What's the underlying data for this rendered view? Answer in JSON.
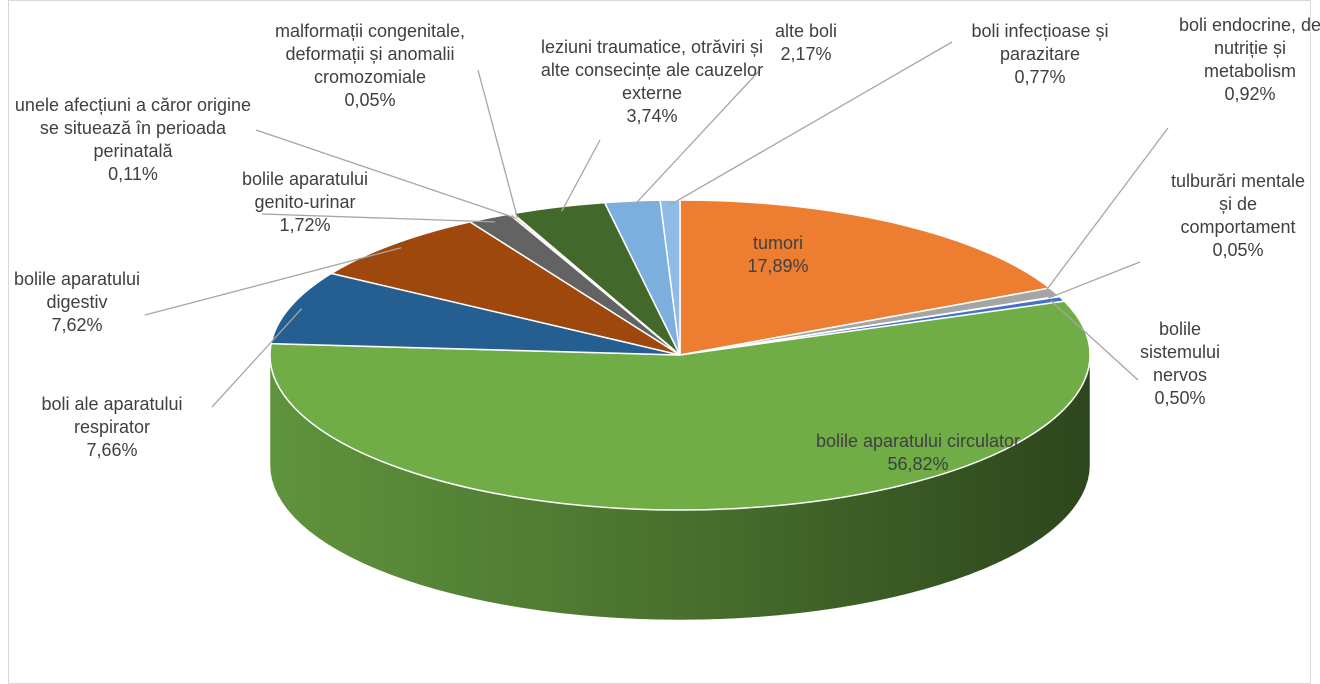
{
  "chart_data": {
    "type": "pie",
    "categories": [
      "tumori",
      "boli endocrine, de nutriție și metabolism",
      "tulburări mentale și de comportament",
      "bolile sistemului nervos",
      "bolile aparatului circulator",
      "boli ale aparatului respirator",
      "bolile aparatului digestiv",
      "bolile aparatului genito-urinar",
      "unele afecțiuni a căror origine se situează în perioada perinatală",
      "malformații congenitale, deformații și anomalii cromozomiale",
      "leziuni traumatice, otrăviri și alte consecințe ale cauzelor externe",
      "alte boli",
      "boli infecțioase și parazitare"
    ],
    "values": [
      17.89,
      0.92,
      0.05,
      0.5,
      56.82,
      7.66,
      7.62,
      1.72,
      0.11,
      0.05,
      3.74,
      2.17,
      0.77
    ],
    "value_labels": [
      "17,89%",
      "0,92%",
      "0,05%",
      "0,50%",
      "56,82%",
      "7,66%",
      "7,62%",
      "1,72%",
      "0,11%",
      "0,05%",
      "3,74%",
      "2,17%",
      "0,77%"
    ],
    "colors": [
      "#ED7D31",
      "#A5A5A5",
      "#FFC000",
      "#4472C4",
      "#70AD47",
      "#255E91",
      "#9E480E",
      "#636363",
      "#997300",
      "#264478",
      "#43682B",
      "#7CAFDD",
      "#8FBCE6"
    ]
  }
}
